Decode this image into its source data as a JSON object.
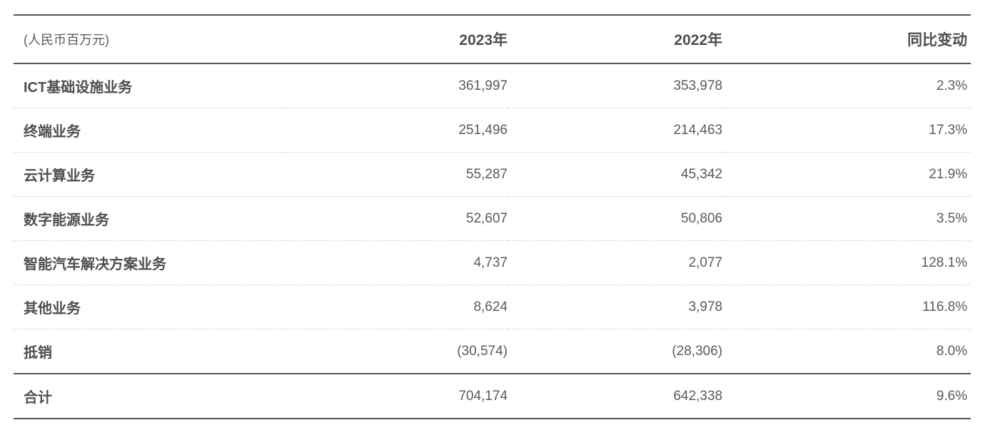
{
  "table": {
    "unit_label": "(人民币百万元)",
    "columns": [
      "2023年",
      "2022年",
      "同比变动"
    ],
    "rows": [
      {
        "name": "ICT基础设施业务",
        "y2023": "361,997",
        "y2022": "353,978",
        "change": "2.3%"
      },
      {
        "name": "终端业务",
        "y2023": "251,496",
        "y2022": "214,463",
        "change": "17.3%"
      },
      {
        "name": "云计算业务",
        "y2023": "55,287",
        "y2022": "45,342",
        "change": "21.9%"
      },
      {
        "name": "数字能源业务",
        "y2023": "52,607",
        "y2022": "50,806",
        "change": "3.5%"
      },
      {
        "name": "智能汽车解决方案业务",
        "y2023": "4,737",
        "y2022": "2,077",
        "change": "128.1%"
      },
      {
        "name": "其他业务",
        "y2023": "8,624",
        "y2022": "3,978",
        "change": "116.8%"
      },
      {
        "name": "抵销",
        "y2023": "(30,574)",
        "y2022": "(28,306)",
        "change": "8.0%"
      },
      {
        "name": "合计",
        "y2023": "704,174",
        "y2022": "642,338",
        "change": "9.6%"
      }
    ],
    "colors": {
      "solid_rule": "#55575a",
      "dashed_rule": "#d6d6d6",
      "header_text": "#4d4e50",
      "value_text": "#595a5c",
      "background": "#ffffff"
    }
  },
  "chart_data": {
    "type": "table",
    "title": "",
    "unit": "(人民币百万元)",
    "columns": [
      "",
      "2023年",
      "2022年",
      "同比变动"
    ],
    "rows": [
      [
        "ICT基础设施业务",
        "361,997",
        "353,978",
        "2.3%"
      ],
      [
        "终端业务",
        "251,496",
        "214,463",
        "17.3%"
      ],
      [
        "云计算业务",
        "55,287",
        "45,342",
        "21.9%"
      ],
      [
        "数字能源业务",
        "52,607",
        "50,806",
        "3.5%"
      ],
      [
        "智能汽车解决方案业务",
        "4,737",
        "2,077",
        "128.1%"
      ],
      [
        "其他业务",
        "8,624",
        "3,978",
        "116.8%"
      ],
      [
        "抵销",
        "(30,574)",
        "(28,306)",
        "8.0%"
      ],
      [
        "合计",
        "704,174",
        "642,338",
        "9.6%"
      ]
    ]
  }
}
